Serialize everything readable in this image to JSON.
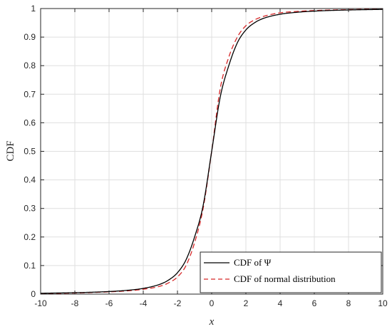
{
  "chart_data": {
    "type": "line",
    "xlabel": "x",
    "ylabel": "CDF",
    "xlim": [
      -10,
      10
    ],
    "ylim": [
      0,
      1
    ],
    "xticks": [
      -10,
      -8,
      -6,
      -4,
      -2,
      0,
      2,
      4,
      6,
      8,
      10
    ],
    "yticks": [
      0,
      0.1,
      0.2,
      0.3,
      0.4,
      0.5,
      0.6,
      0.7,
      0.8,
      0.9,
      1
    ],
    "grid": true,
    "legend_position": "bottom-right",
    "series": [
      {
        "name": "CDF of Ψ",
        "color": "#000000",
        "style": "solid",
        "x": [
          -10,
          -8,
          -6,
          -5,
          -4,
          -3,
          -2.5,
          -2,
          -1.5,
          -1,
          -0.5,
          0,
          0.5,
          1,
          1.5,
          2,
          2.5,
          3,
          4,
          5,
          6,
          8,
          10
        ],
        "y": [
          0.003,
          0.005,
          0.009,
          0.013,
          0.02,
          0.035,
          0.05,
          0.075,
          0.12,
          0.2,
          0.31,
          0.5,
          0.69,
          0.8,
          0.88,
          0.925,
          0.95,
          0.965,
          0.98,
          0.987,
          0.991,
          0.995,
          0.997
        ]
      },
      {
        "name": "CDF of normal distribution",
        "color": "#d62728",
        "style": "dashed",
        "x": [
          -10,
          -8,
          -6,
          -5,
          -4,
          -3,
          -2.5,
          -2,
          -1.5,
          -1,
          -0.5,
          0,
          0.5,
          1,
          1.5,
          2,
          2.5,
          3,
          4,
          5,
          6,
          8,
          10
        ],
        "y": [
          0.002,
          0.004,
          0.008,
          0.011,
          0.017,
          0.028,
          0.04,
          0.06,
          0.1,
          0.18,
          0.3,
          0.5,
          0.72,
          0.83,
          0.9,
          0.94,
          0.96,
          0.972,
          0.985,
          0.99,
          0.993,
          0.996,
          0.998
        ]
      }
    ]
  }
}
